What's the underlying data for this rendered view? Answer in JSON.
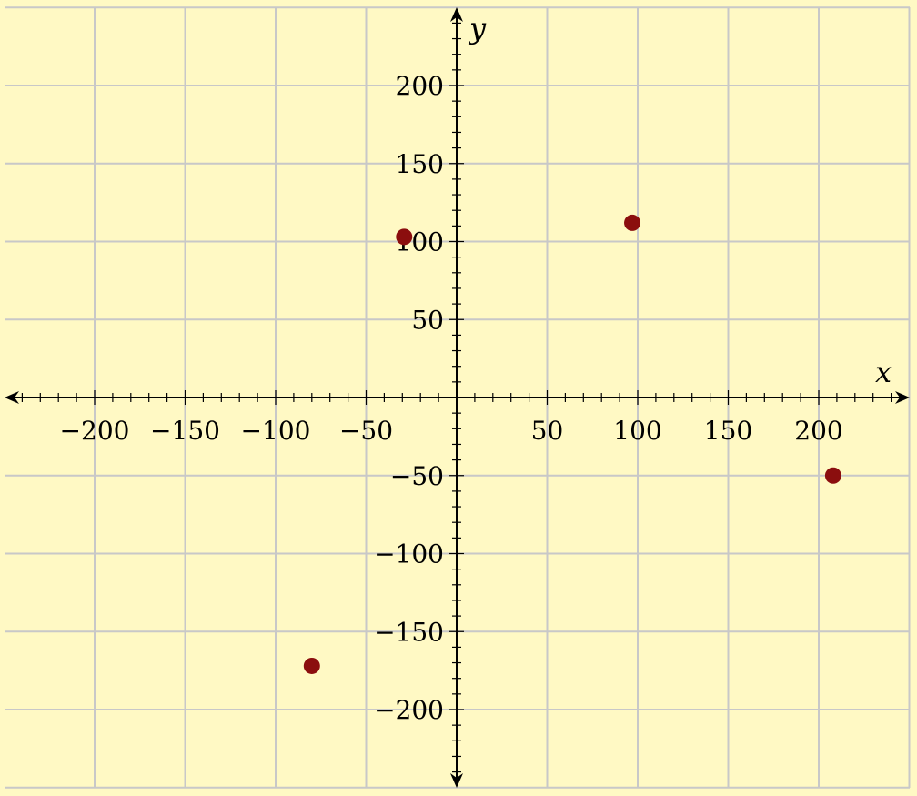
{
  "chart_data": {
    "type": "scatter",
    "title": "",
    "xlabel": "x",
    "ylabel": "y",
    "xlim": [
      -250,
      250
    ],
    "ylim": [
      -250,
      250
    ],
    "x_ticks": [
      -200,
      -150,
      -100,
      -50,
      50,
      100,
      150,
      200
    ],
    "x_tick_labels": [
      "−200",
      "−150",
      "−100",
      "−50",
      "50",
      "100",
      "150",
      "200"
    ],
    "y_ticks": [
      200,
      150,
      100,
      50,
      -50,
      -100,
      -150,
      -200
    ],
    "y_tick_labels": [
      "200",
      "150",
      "100",
      "50",
      "−50",
      "−100",
      "−150",
      "−200"
    ],
    "minor_tick_step": 10,
    "grid": true,
    "background_color": "#fff9c4",
    "grid_color": "#c8c8c8",
    "point_color": "#8b0e0e",
    "series": [
      {
        "points": [
          {
            "x": -29,
            "y": 103
          },
          {
            "x": 97,
            "y": 112
          },
          {
            "x": 208,
            "y": -50
          },
          {
            "x": -80,
            "y": -172
          }
        ]
      }
    ]
  }
}
